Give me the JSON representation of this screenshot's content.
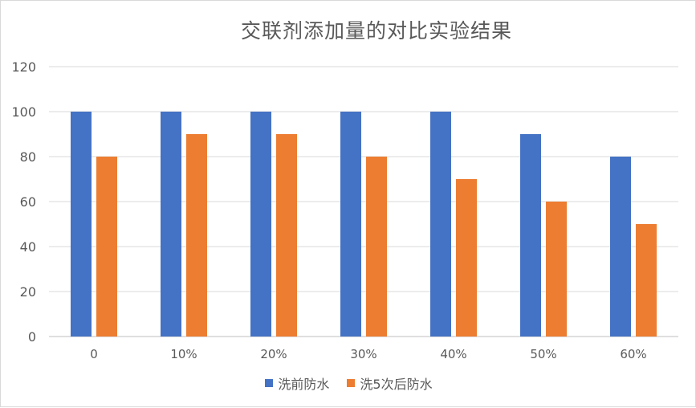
{
  "chart_data": {
    "type": "bar",
    "title": "交联剂添加量的对比实验结果",
    "xlabel": "",
    "ylabel": "",
    "categories": [
      "0",
      "10%",
      "20%",
      "30%",
      "40%",
      "50%",
      "60%"
    ],
    "series": [
      {
        "name": "洗前防水",
        "values": [
          100,
          100,
          100,
          100,
          100,
          90,
          80
        ],
        "color": "#4472C4"
      },
      {
        "name": "洗5次后防水",
        "values": [
          80,
          90,
          90,
          80,
          70,
          60,
          50
        ],
        "color": "#ED7D31"
      }
    ],
    "ylim": [
      0,
      120
    ],
    "yticks": [
      0,
      20,
      40,
      60,
      80,
      100,
      120
    ],
    "grid": true,
    "legend_position": "bottom"
  }
}
